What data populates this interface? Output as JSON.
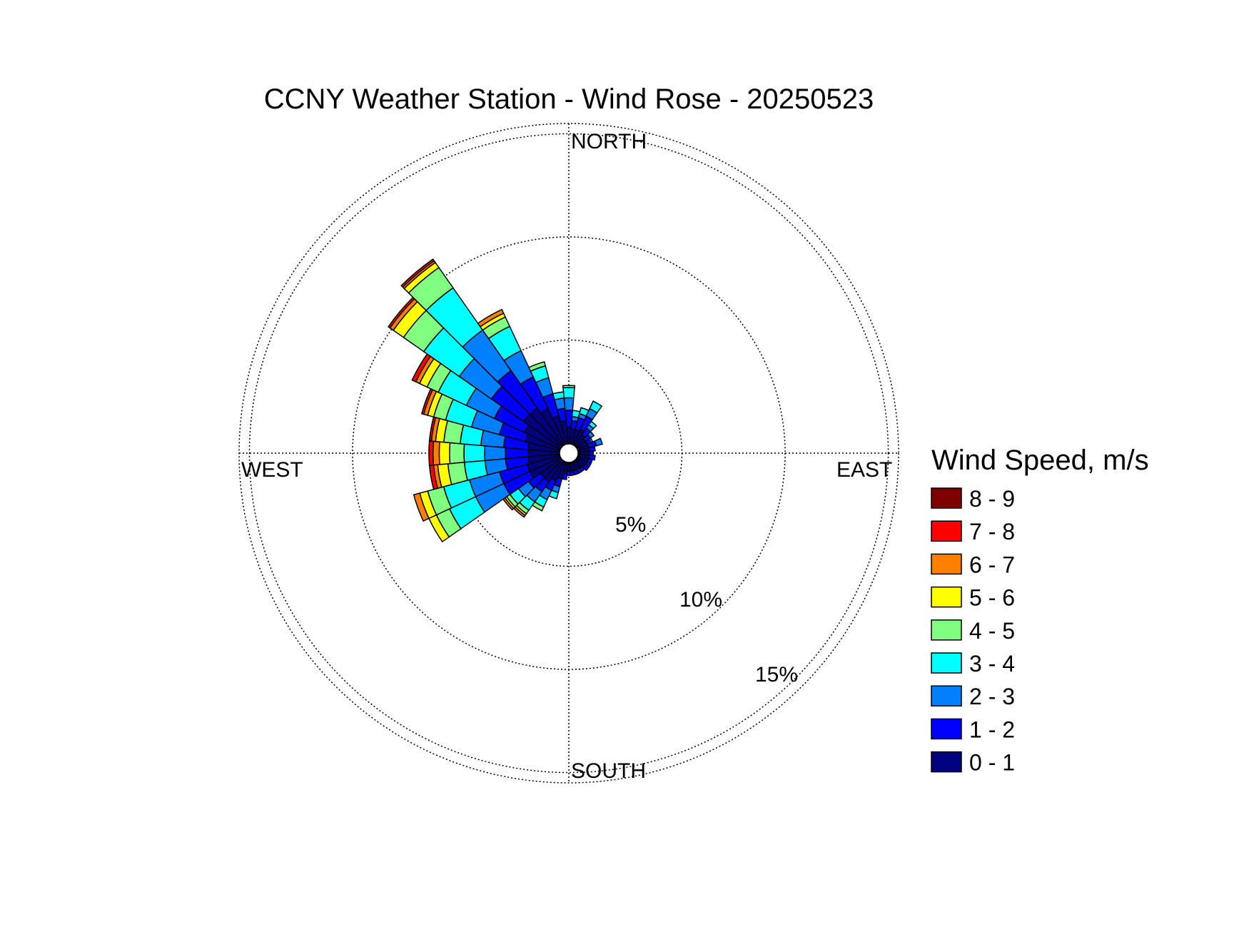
{
  "chart_data": {
    "type": "wind-rose",
    "title": "CCNY Weather Station - Wind Rose - 20250523",
    "directions_labels": {
      "north": "NORTH",
      "east": "EAST",
      "south": "SOUTH",
      "west": "WEST"
    },
    "rings": [
      {
        "value": 5,
        "label": "5%"
      },
      {
        "value": 10,
        "label": "10%"
      },
      {
        "value": 15,
        "label": "15%"
      }
    ],
    "rmax": 15.5,
    "legend_title": "Wind Speed, m/s",
    "speed_bins": [
      {
        "label": "0 - 1",
        "color": "#000080"
      },
      {
        "label": "1 - 2",
        "color": "#0000ff"
      },
      {
        "label": "2 - 3",
        "color": "#0080ff"
      },
      {
        "label": "3 - 4",
        "color": "#00ffff"
      },
      {
        "label": "4 - 5",
        "color": "#80ff80"
      },
      {
        "label": "5 - 6",
        "color": "#ffff00"
      },
      {
        "label": "6 - 7",
        "color": "#ff8000"
      },
      {
        "label": "7 - 8",
        "color": "#ff0000"
      },
      {
        "label": "8 - 9",
        "color": "#800000"
      }
    ],
    "sector_width_deg": 10,
    "direction_axis": "degrees clockwise from north",
    "sectors": [
      {
        "dir": 0,
        "cum": [
          0.8,
          1.6,
          2.2,
          2.7,
          2.8
        ]
      },
      {
        "dir": 10,
        "cum": [
          0.7,
          1.1,
          1.3,
          1.6
        ]
      },
      {
        "dir": 20,
        "cum": [
          0.7,
          1.3,
          1.5,
          1.8
        ]
      },
      {
        "dir": 30,
        "cum": [
          0.8,
          1.5,
          1.9,
          2.3
        ]
      },
      {
        "dir": 40,
        "cum": [
          0.6,
          1.0,
          1.2,
          1.4
        ]
      },
      {
        "dir": 50,
        "cum": [
          0.5,
          0.8,
          1.0
        ]
      },
      {
        "dir": 60,
        "cum": [
          0.5,
          0.7,
          0.8
        ]
      },
      {
        "dir": 70,
        "cum": [
          0.5,
          0.9,
          1.2
        ]
      },
      {
        "dir": 80,
        "cum": [
          0.5,
          0.8
        ]
      },
      {
        "dir": 90,
        "cum": [
          0.5,
          0.7
        ]
      },
      {
        "dir": 100,
        "cum": [
          0.5,
          0.8
        ]
      },
      {
        "dir": 110,
        "cum": [
          0.5,
          0.7
        ]
      },
      {
        "dir": 120,
        "cum": [
          0.5,
          0.7
        ]
      },
      {
        "dir": 130,
        "cum": [
          0.5,
          0.7
        ]
      },
      {
        "dir": 140,
        "cum": [
          0.4,
          0.6
        ]
      },
      {
        "dir": 150,
        "cum": [
          0.4,
          0.6
        ]
      },
      {
        "dir": 160,
        "cum": [
          0.4,
          0.6
        ]
      },
      {
        "dir": 170,
        "cum": [
          0.4,
          0.6
        ]
      },
      {
        "dir": 180,
        "cum": [
          0.4,
          0.6
        ]
      },
      {
        "dir": 190,
        "cum": [
          0.5,
          0.8
        ]
      },
      {
        "dir": 200,
        "cum": [
          0.8,
          1.2,
          1.5,
          1.8
        ]
      },
      {
        "dir": 210,
        "cum": [
          1.0,
          1.5,
          2.0,
          2.4,
          2.6
        ]
      },
      {
        "dir": 220,
        "cum": [
          1.2,
          1.8,
          2.4,
          2.9,
          3.1,
          3.2,
          3.3
        ]
      },
      {
        "dir": 230,
        "cum": [
          1.2,
          1.9,
          2.5,
          3.0,
          3.2,
          3.3,
          3.4
        ]
      },
      {
        "dir": 240,
        "cum": [
          1.6,
          3.0,
          4.5,
          5.9,
          6.6,
          7.0
        ]
      },
      {
        "dir": 250,
        "cum": [
          1.6,
          3.0,
          4.5,
          5.8,
          6.6,
          7.0,
          7.3
        ]
      },
      {
        "dir": 260,
        "cum": [
          1.5,
          2.6,
          3.6,
          4.6,
          5.4,
          5.9,
          6.1,
          6.3
        ]
      },
      {
        "dir": 270,
        "cum": [
          1.5,
          2.6,
          3.6,
          4.6,
          5.3,
          5.8,
          6.1,
          6.3
        ]
      },
      {
        "dir": 280,
        "cum": [
          1.5,
          2.7,
          3.8,
          4.8,
          5.6,
          6.0,
          6.2,
          6.3
        ]
      },
      {
        "dir": 290,
        "cum": [
          1.7,
          3.0,
          4.4,
          5.7,
          6.3,
          6.6,
          6.8,
          6.9
        ]
      },
      {
        "dir": 300,
        "cum": [
          1.9,
          3.5,
          5.0,
          6.5,
          7.1,
          7.5,
          7.7,
          7.9
        ]
      },
      {
        "dir": 310,
        "cum": [
          2.2,
          4.1,
          6.0,
          8.1,
          9.3,
          9.9,
          10.1,
          10.2
        ]
      },
      {
        "dir": 320,
        "cum": [
          2.2,
          4.4,
          6.8,
          9.3,
          10.5,
          10.8,
          10.9,
          11.0
        ]
      },
      {
        "dir": 330,
        "cum": [
          1.9,
          3.6,
          5.0,
          6.3,
          6.8,
          7.0,
          7.2
        ]
      },
      {
        "dir": 340,
        "cum": [
          1.4,
          2.5,
          3.3,
          3.9,
          4.1
        ]
      },
      {
        "dir": 350,
        "cum": [
          1.1,
          1.7,
          2.2,
          2.5
        ]
      }
    ]
  }
}
